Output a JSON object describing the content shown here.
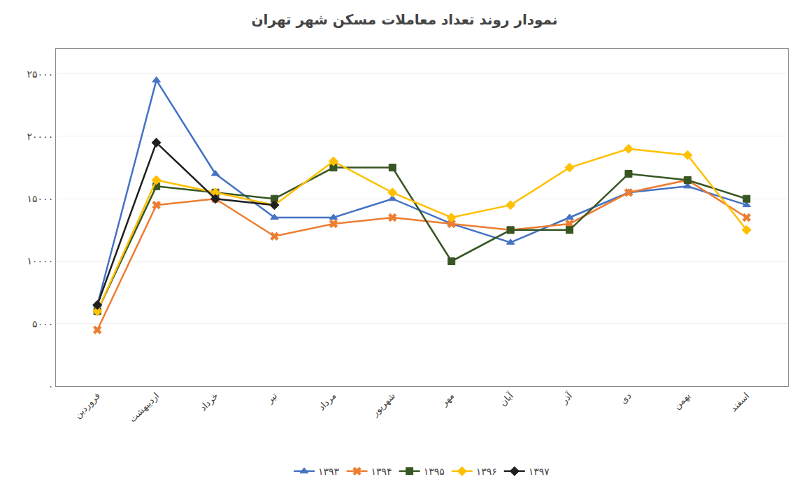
{
  "chart_data": {
    "type": "line",
    "title": "نمودار روند تعداد معاملات مسكن شهر تهران",
    "categories": [
      "فروردین",
      "اردیبهشت",
      "خرداد",
      "تیر",
      "مرداد",
      "شهریور",
      "مهر",
      "آبان",
      "آذر",
      "دی",
      "بهمن",
      "اسفند"
    ],
    "series": [
      {
        "name": "۱۳۹۳",
        "color": "#4472C4",
        "marker": "triangle-up",
        "values": [
          6500,
          24500,
          17000,
          13500,
          13500,
          15000,
          13000,
          11500,
          13500,
          15500,
          16000,
          14500
        ]
      },
      {
        "name": "۱۳۹۴",
        "color": "#ED7D31",
        "marker": "x",
        "values": [
          4500,
          14500,
          15000,
          12000,
          13000,
          13500,
          13000,
          12500,
          13000,
          15500,
          16500,
          13500
        ]
      },
      {
        "name": "۱۳۹۵",
        "color": "#375623",
        "marker": "square",
        "values": [
          6000,
          16000,
          15500,
          15000,
          17500,
          17500,
          10000,
          12500,
          12500,
          17000,
          16500,
          15000
        ]
      },
      {
        "name": "۱۳۹۶",
        "color": "#FFC000",
        "marker": "diamond",
        "values": [
          6000,
          16500,
          15500,
          14500,
          18000,
          15500,
          13500,
          14500,
          17500,
          19000,
          18500,
          12500
        ]
      },
      {
        "name": "۱۳۹۷",
        "color": "#1F1F1F",
        "marker": "diamond",
        "values": [
          6500,
          19500,
          15000,
          14500,
          null,
          null,
          null,
          null,
          null,
          null,
          null,
          null
        ]
      }
    ],
    "ylim": [
      0,
      27000
    ],
    "yticks": [
      {
        "value": 0,
        "label": "۰"
      },
      {
        "value": 5000,
        "label": "۵۰۰۰"
      },
      {
        "value": 10000,
        "label": "۱۰۰۰۰"
      },
      {
        "value": 15000,
        "label": "۱۵۰۰۰"
      },
      {
        "value": 20000,
        "label": "۲۰۰۰۰"
      },
      {
        "value": 25000,
        "label": "۲۵۰۰۰"
      }
    ],
    "grid": true,
    "legend": "bottom"
  }
}
